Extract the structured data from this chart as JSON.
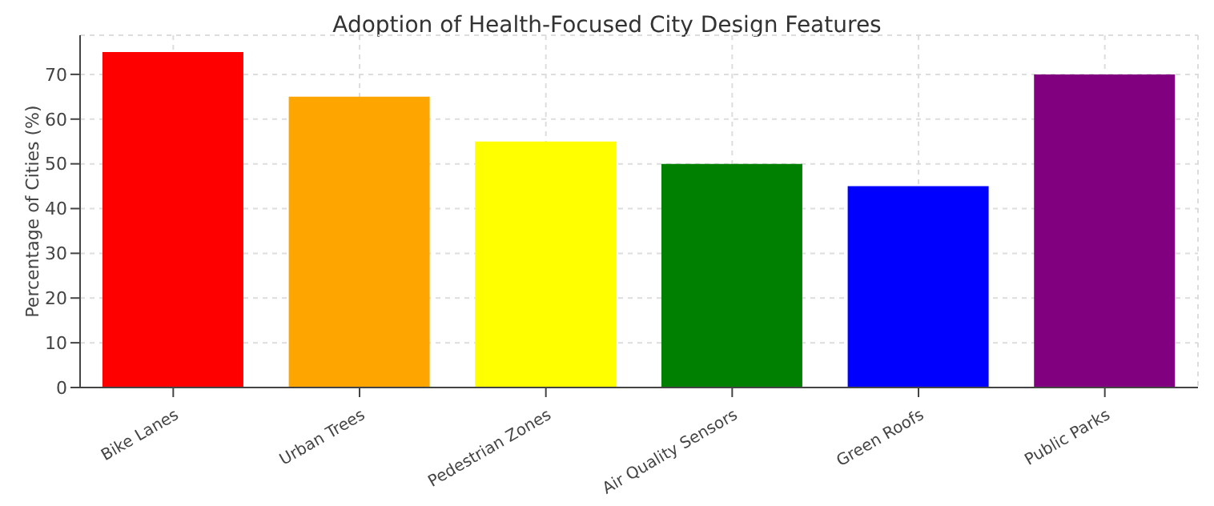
{
  "chart_data": {
    "type": "bar",
    "title": "Adoption of Health-Focused City Design Features",
    "ylabel": "Percentage of Cities (%)",
    "categories": [
      "Bike Lanes",
      "Urban Trees",
      "Pedestrian Zones",
      "Air Quality Sensors",
      "Green Roofs",
      "Public Parks"
    ],
    "values": [
      75,
      65,
      55,
      50,
      45,
      70
    ],
    "colors": [
      "#ff0000",
      "#ffa500",
      "#ffff00",
      "#008000",
      "#0000ff",
      "#800080"
    ],
    "ylim": [
      0,
      78.75
    ],
    "yticks": [
      0,
      10,
      20,
      30,
      40,
      50,
      60,
      70
    ],
    "grid": true
  }
}
